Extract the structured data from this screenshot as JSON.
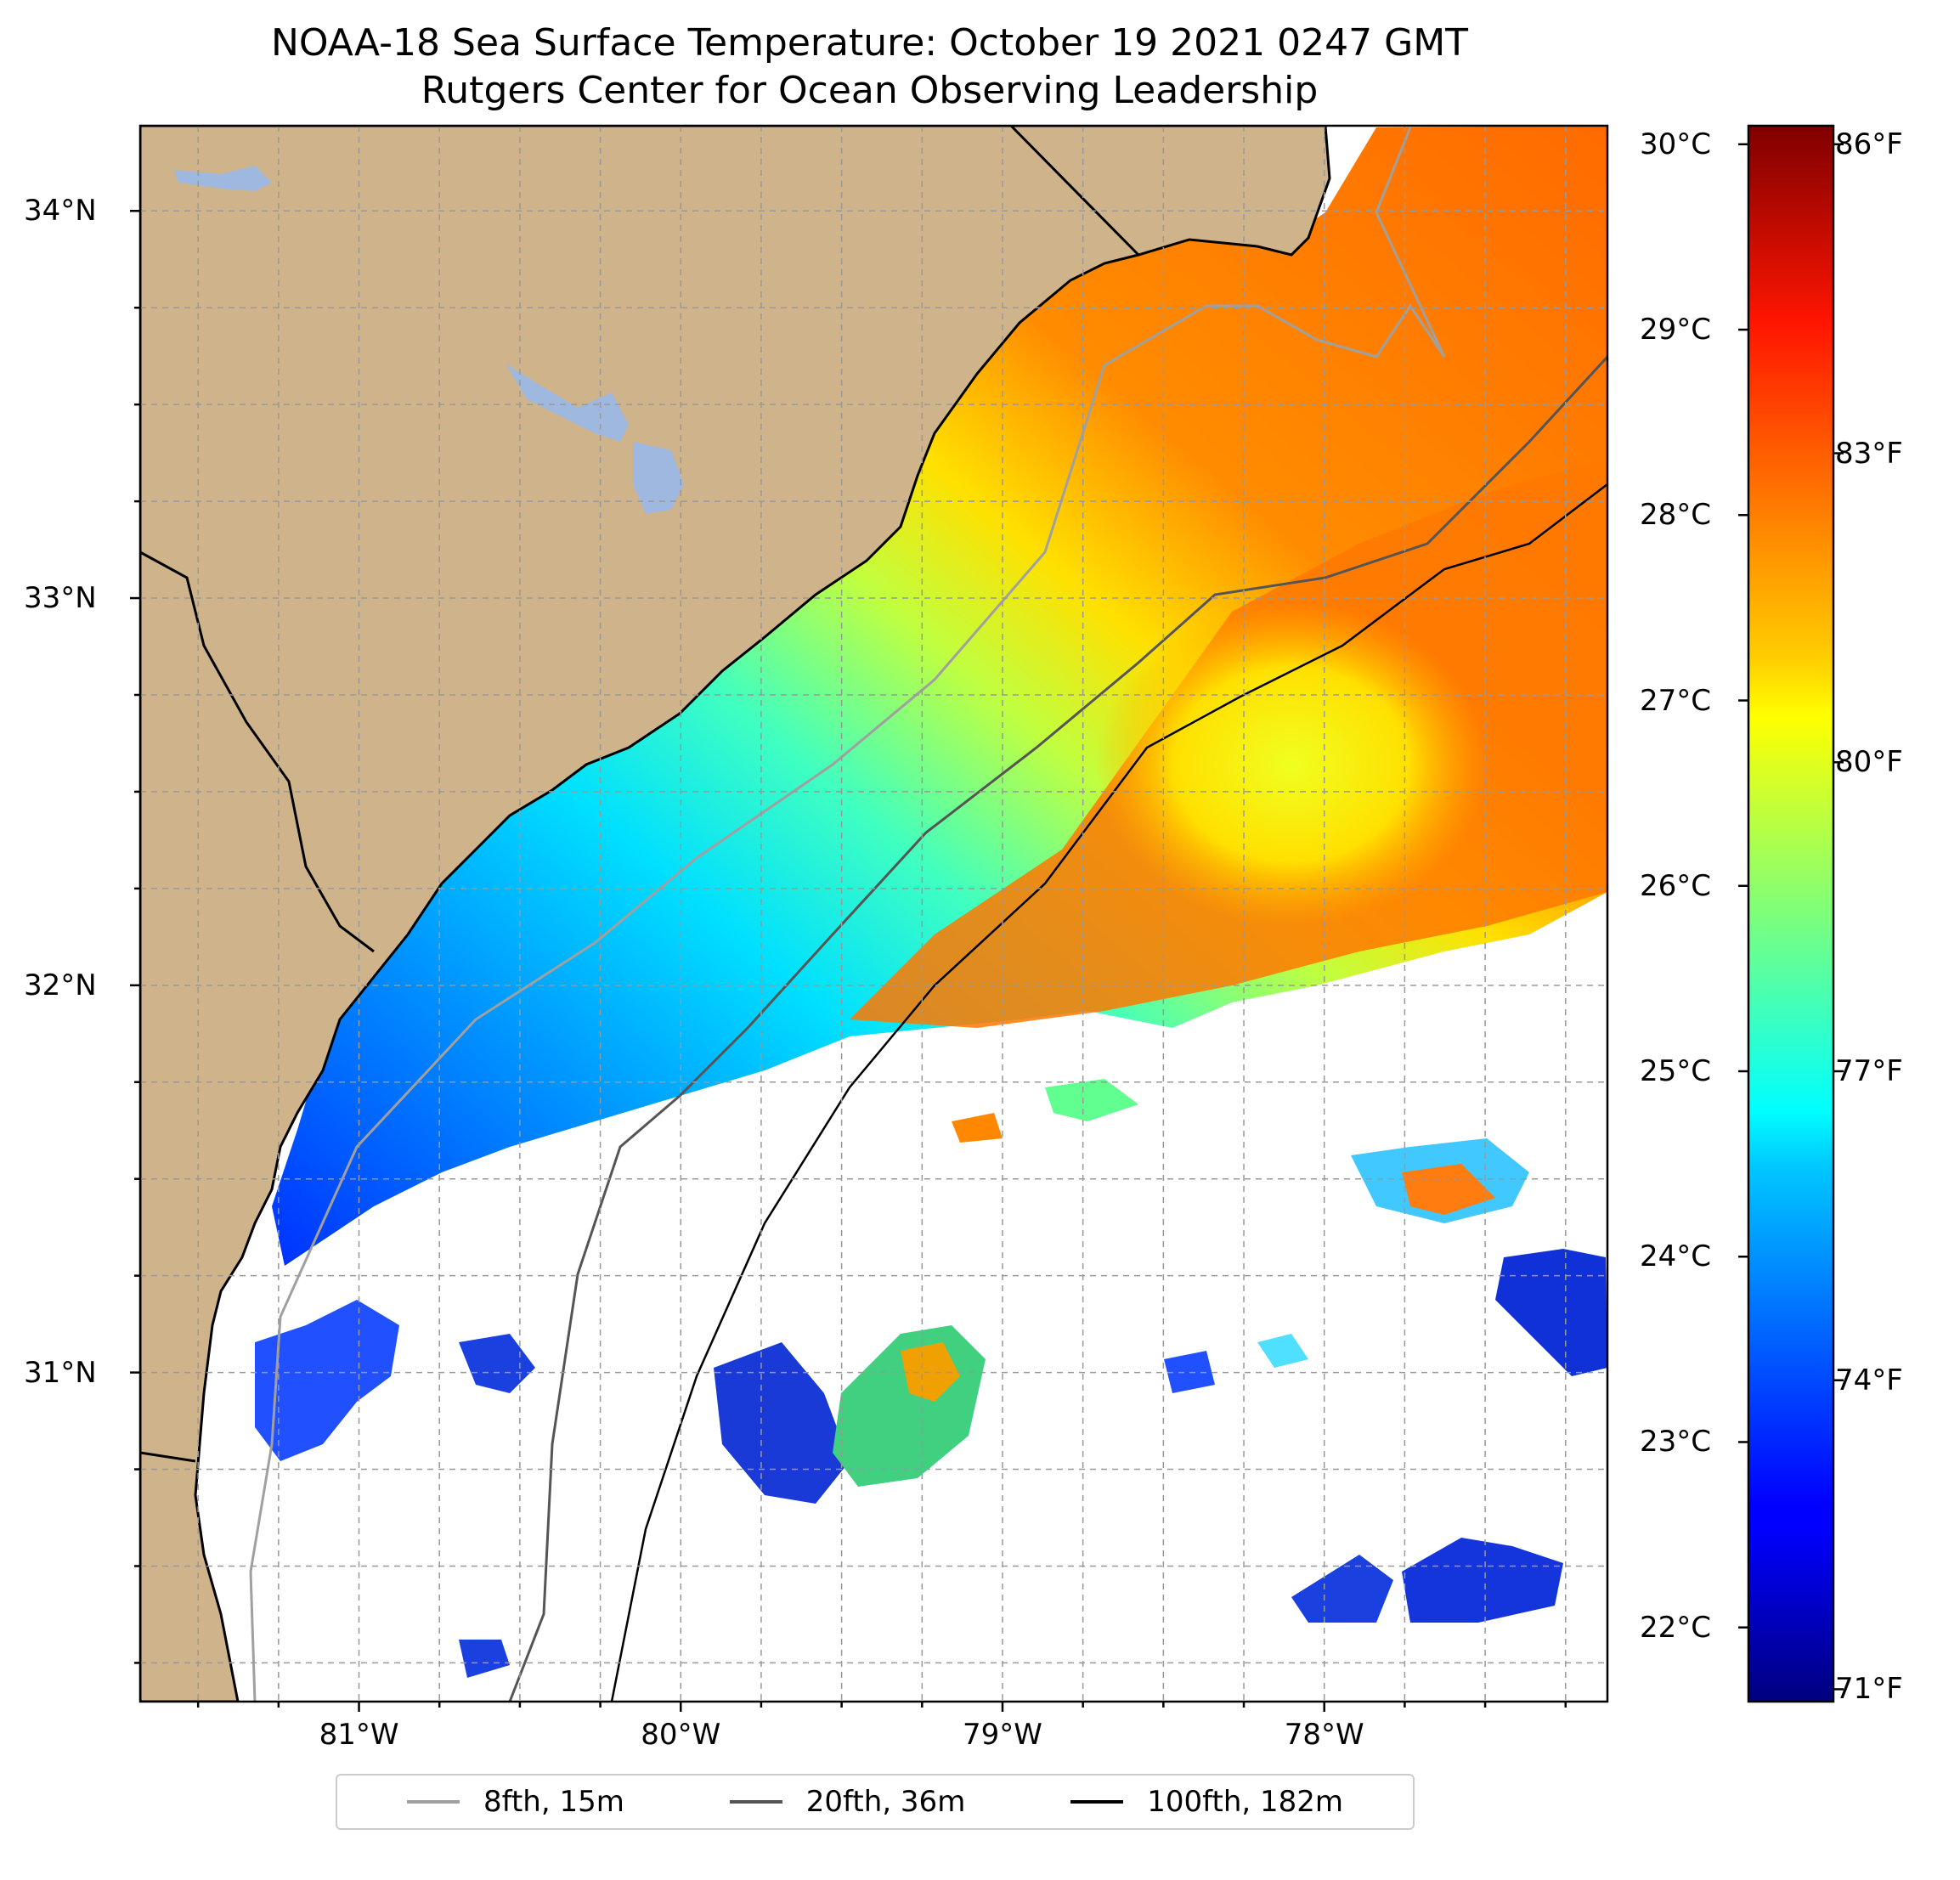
{
  "title": "NOAA-18 Sea Surface Temperature: October 19 2021 0247 GMT",
  "subtitle": "Rutgers Center for Ocean Observing Leadership",
  "map": {
    "lat_range": [
      30.15,
      34.22
    ],
    "lon_range": [
      -81.68,
      -77.12
    ],
    "lat_labels": [
      "34°N",
      "33°N",
      "32°N",
      "31°N"
    ],
    "lat_values": [
      34,
      33,
      32,
      31
    ],
    "lon_labels": [
      "81°W",
      "80°W",
      "79°W",
      "78°W"
    ],
    "lon_values": [
      -81,
      -80,
      -79,
      -78
    ],
    "land_color": "#cfb38b",
    "lake_color": "#9fb8e0",
    "no_data_color": "#ffffff",
    "grid": true
  },
  "colorbar": {
    "colormap": "jet",
    "celsius_labels": [
      "30°C",
      "29°C",
      "28°C",
      "27°C",
      "26°C",
      "25°C",
      "24°C",
      "23°C",
      "22°C"
    ],
    "celsius_values": [
      30,
      29,
      28,
      27,
      26,
      25,
      24,
      23,
      22
    ],
    "fahrenheit_labels": [
      "86°F",
      "83°F",
      "80°F",
      "77°F",
      "74°F",
      "71°F"
    ],
    "fahrenheit_values": [
      86,
      83,
      80,
      77,
      74,
      71
    ],
    "range_c": [
      21.6,
      30.1
    ]
  },
  "legend": [
    {
      "label": "8fth, 15m",
      "color": "#a0a0a0"
    },
    {
      "label": "20fth, 36m",
      "color": "#555555"
    },
    {
      "label": "100fth, 182m",
      "color": "#000000"
    }
  ]
}
